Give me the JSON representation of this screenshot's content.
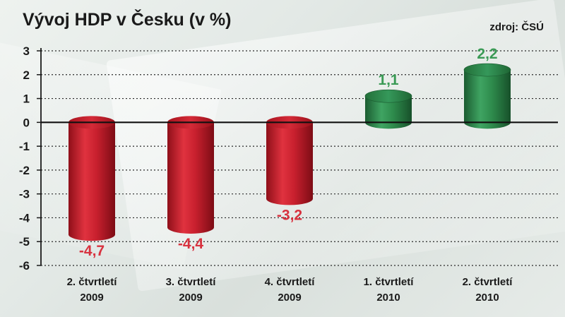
{
  "header": {
    "title": "Vývoj HDP v Česku (v %)",
    "source": "zdroj: ČSÚ"
  },
  "colors": {
    "negative": "#c8202e",
    "positive": "#2e8b4c",
    "negative_label": "#d8323f",
    "positive_label": "#3a9a55"
  },
  "chart_data": {
    "type": "bar",
    "title": "Vývoj HDP v Česku (v %)",
    "ylim": [
      -6,
      3
    ],
    "yticks": [
      3,
      2,
      1,
      0,
      -1,
      -2,
      -3,
      -4,
      -5,
      -6
    ],
    "ytick_labels": [
      "3",
      "2",
      "1",
      "0",
      "-1",
      "-2",
      "-3",
      "-4",
      "-5",
      "-6"
    ],
    "grid": true,
    "categories": [
      [
        "2. čtvrtletí",
        "2009"
      ],
      [
        "3. čtvrtletí",
        "2009"
      ],
      [
        "4. čtvrtletí",
        "2009"
      ],
      [
        "1. čtvrtletí",
        "2010"
      ],
      [
        "2. čtvrtletí",
        "2010"
      ]
    ],
    "values": [
      -4.7,
      -4.4,
      -3.2,
      1.1,
      2.2
    ],
    "value_labels": [
      "-4,7",
      "-4,4",
      "-3,2",
      "1,1",
      "2,2"
    ]
  }
}
